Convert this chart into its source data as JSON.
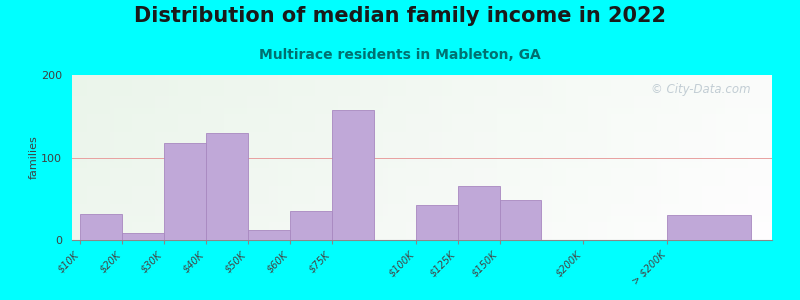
{
  "title": "Distribution of median family income in 2022",
  "subtitle": "Multirace residents in Mableton, GA",
  "ylabel": "families",
  "background_outer": "#00FFFF",
  "bar_color": "#c0a8d8",
  "bar_edge_color": "#a888c0",
  "gridline_color": "#e8a0a0",
  "watermark": "© City-Data.com",
  "categories": [
    "$10K",
    "$20K",
    "$30K",
    "$40K",
    "$50K",
    "$60K",
    "$75K",
    "$100K",
    "$125K",
    "$150K",
    "$200K",
    "> $200K"
  ],
  "values": [
    32,
    8,
    118,
    130,
    12,
    35,
    158,
    42,
    65,
    48,
    0,
    30
  ],
  "bar_lefts": [
    0,
    1,
    2,
    3,
    4,
    5,
    6,
    8,
    9,
    10,
    12,
    14
  ],
  "bar_widths": [
    1,
    1,
    1,
    1,
    1,
    1,
    1,
    1,
    1,
    1,
    1,
    2
  ],
  "tick_positions": [
    0,
    1,
    2,
    3,
    4,
    5,
    6,
    8,
    9,
    10,
    12,
    14
  ],
  "xlim": [
    -0.2,
    16.5
  ],
  "ylim": [
    0,
    200
  ],
  "yticks": [
    0,
    100,
    200
  ],
  "title_fontsize": 15,
  "subtitle_fontsize": 10,
  "ylabel_fontsize": 8,
  "tick_fontsize": 7
}
